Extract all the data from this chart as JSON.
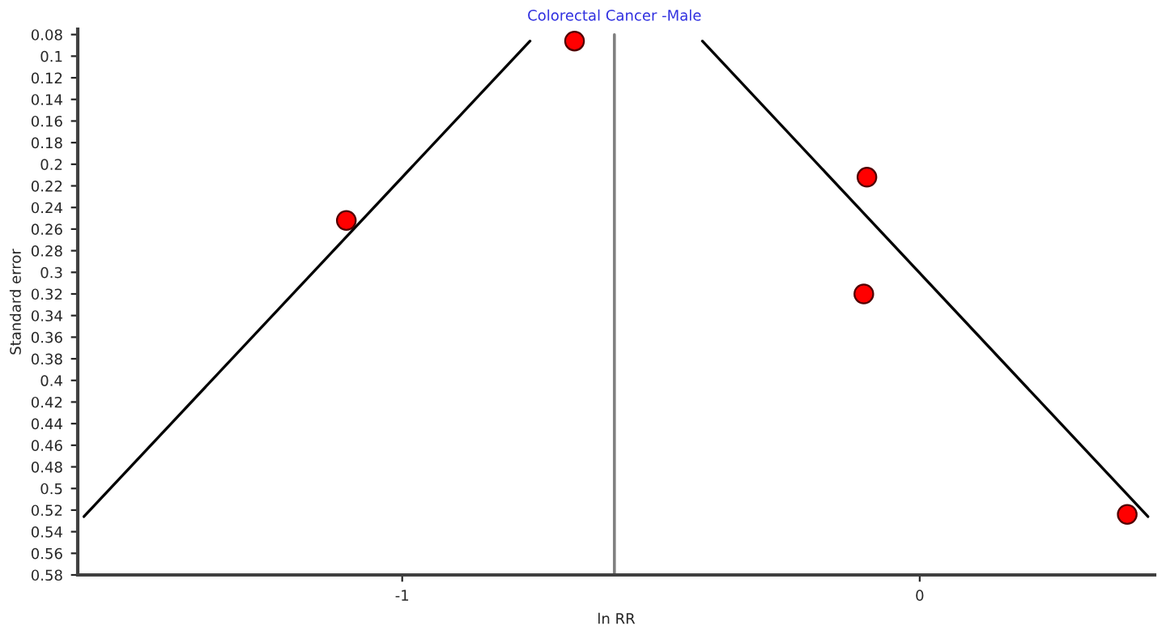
{
  "chart_data": {
    "type": "scatter",
    "title": "Colorectal Cancer -Male",
    "xlabel": "ln RR",
    "ylabel": "Standard error",
    "series": [
      {
        "color": "#ff0000",
        "marker": "circle",
        "x": [
          -0.667,
          -1.108,
          -0.102,
          -0.108,
          0.401
        ],
        "values": [
          0.086,
          0.252,
          0.212,
          0.32,
          0.524
        ]
      },
      {
        "type": "line",
        "color": "#000000",
        "x": [
          -1.615,
          -0.753
        ],
        "values": [
          0.526,
          0.086
        ]
      },
      {
        "type": "line",
        "color": "#000000",
        "x": [
          -0.42,
          0.441
        ],
        "values": [
          0.086,
          0.526
        ]
      }
    ],
    "ref_lines": [
      {
        "axis": "x",
        "value": -0.59,
        "color": "#808080"
      }
    ],
    "xlim": [
      -1.627,
      0.454
    ],
    "xticks": [
      -1,
      0
    ],
    "ylim": [
      0.58,
      0.075
    ],
    "yticks": [
      0.08,
      0.1,
      0.12,
      0.14,
      0.16,
      0.18,
      0.2,
      0.22,
      0.24,
      0.26,
      0.28,
      0.3,
      0.32,
      0.34,
      0.36,
      0.38,
      0.4,
      0.42,
      0.44,
      0.46,
      0.48,
      0.5,
      0.52,
      0.54,
      0.56,
      0.58
    ],
    "grid": false,
    "legend": false
  }
}
